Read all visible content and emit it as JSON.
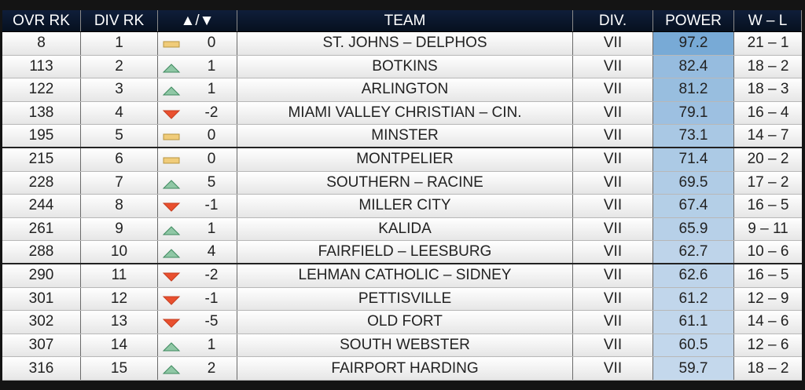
{
  "table": {
    "columns": [
      "OVR RK",
      "DIV RK",
      "▲/▼",
      "TEAM",
      "DIV.",
      "POWER",
      "W – L"
    ],
    "rows": [
      [
        8,
        1,
        0,
        "ST. JOHNS – DELPHOS",
        "VII",
        97.2,
        "21 – 1"
      ],
      [
        113,
        2,
        1,
        "BOTKINS",
        "VII",
        82.4,
        "18 – 2"
      ],
      [
        122,
        3,
        1,
        "ARLINGTON",
        "VII",
        81.2,
        "18 – 3"
      ],
      [
        138,
        4,
        -2,
        "MIAMI VALLEY CHRISTIAN – CIN.",
        "VII",
        79.1,
        "16 – 4"
      ],
      [
        195,
        5,
        0,
        "MINSTER",
        "VII",
        73.1,
        "14 – 7"
      ],
      [
        215,
        6,
        0,
        "MONTPELIER",
        "VII",
        71.4,
        "20 – 2"
      ],
      [
        228,
        7,
        5,
        "SOUTHERN – RACINE",
        "VII",
        69.5,
        "17 – 2"
      ],
      [
        244,
        8,
        -1,
        "MILLER CITY",
        "VII",
        67.4,
        "16 – 5"
      ],
      [
        261,
        9,
        1,
        "KALIDA",
        "VII",
        65.9,
        "9 – 11"
      ],
      [
        288,
        10,
        4,
        "FAIRFIELD – LEESBURG",
        "VII",
        62.7,
        "10 – 6"
      ],
      [
        290,
        11,
        -2,
        "LEHMAN CATHOLIC – SIDNEY",
        "VII",
        62.6,
        "16 – 5"
      ],
      [
        301,
        12,
        -1,
        "PETTISVILLE",
        "VII",
        61.2,
        "12 – 9"
      ],
      [
        302,
        13,
        -5,
        "OLD FORT",
        "VII",
        61.1,
        "14 – 6"
      ],
      [
        307,
        14,
        1,
        "SOUTH WEBSTER",
        "VII",
        60.5,
        "12 – 6"
      ],
      [
        316,
        15,
        2,
        "FAIRPORT HARDING",
        "VII",
        59.7,
        "18 – 2"
      ]
    ]
  }
}
